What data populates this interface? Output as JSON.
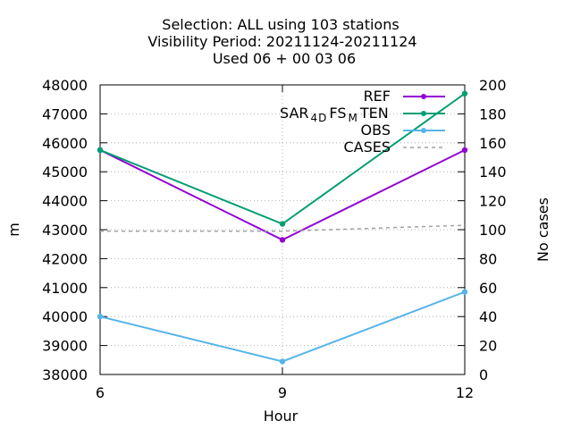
{
  "chart_data": {
    "type": "line",
    "title_lines": [
      "Selection: ALL using   103 stations",
      "Visibility   Period: 20211124-20211124",
      "Used  06 + 00 03 06"
    ],
    "xlabel": "Hour",
    "ylabel": "m",
    "y2label": "No cases",
    "x": [
      6,
      9,
      12
    ],
    "xticks": [
      "6",
      "9",
      "12"
    ],
    "xlim": [
      6,
      12
    ],
    "ylim": [
      38000,
      48000
    ],
    "yticks": [
      "38000",
      "39000",
      "40000",
      "41000",
      "42000",
      "43000",
      "44000",
      "45000",
      "46000",
      "47000",
      "48000"
    ],
    "y2lim": [
      0,
      200
    ],
    "y2ticks": [
      "0",
      "20",
      "40",
      "60",
      "80",
      "100",
      "120",
      "140",
      "160",
      "180",
      "200"
    ],
    "grid": true,
    "legend_position": "top-right",
    "series": [
      {
        "name": "REF",
        "axis": "y",
        "color": "#9400d3",
        "values": [
          45750,
          42650,
          45750
        ]
      },
      {
        "name": "SAR_4D FS_M TEN",
        "axis": "y",
        "color": "#009e73",
        "values": [
          45750,
          43200,
          47700
        ]
      },
      {
        "name": "OBS",
        "axis": "y",
        "color": "#56b4e9",
        "values": [
          40000,
          38450,
          40850
        ]
      },
      {
        "name": "CASES",
        "axis": "y2",
        "color": "#a0a0a0",
        "dashed": true,
        "values": [
          99,
          99,
          103
        ]
      }
    ]
  }
}
